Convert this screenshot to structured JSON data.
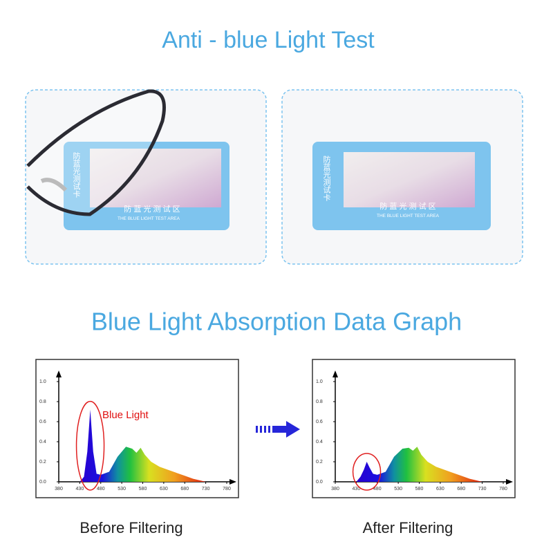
{
  "header": {
    "title": "Anti - blue Light Test"
  },
  "card": {
    "side_text": "防蓝光测试卡",
    "area_text": "防 蓝 光 测 试 区",
    "english_text": "THE BLUE LIGHT TEST AREA"
  },
  "section": {
    "title": "Blue Light Absorption Data Graph"
  },
  "chart_data": [
    {
      "type": "area",
      "annotation": "Blue Light",
      "caption": "Before Filtering",
      "x": [
        430,
        440,
        448,
        455,
        462,
        470,
        480,
        500,
        520,
        540,
        555,
        565,
        575,
        585,
        600,
        620,
        640,
        660,
        680,
        700,
        720,
        730
      ],
      "series": [
        {
          "values": [
            0,
            0.05,
            0.3,
            0.72,
            0.3,
            0.08,
            0.07,
            0.1,
            0.25,
            0.35,
            0.33,
            0.29,
            0.34,
            0.27,
            0.2,
            0.15,
            0.12,
            0.09,
            0.06,
            0.03,
            0.01,
            0
          ]
        }
      ],
      "xlim": [
        380,
        780
      ],
      "ylim": [
        0,
        1
      ],
      "xticks": [
        380,
        430,
        480,
        530,
        580,
        630,
        680,
        730,
        780
      ],
      "yticks": [
        {
          "value": 0,
          "label": "0.0"
        },
        0.2,
        0.4,
        0.6,
        0.8,
        {
          "value": 1,
          "label": "1.0"
        }
      ]
    },
    {
      "type": "area",
      "caption": "After Filtering",
      "x": [
        430,
        440,
        448,
        455,
        462,
        470,
        480,
        500,
        520,
        540,
        555,
        565,
        575,
        585,
        600,
        620,
        640,
        660,
        680,
        700,
        720,
        730
      ],
      "series": [
        {
          "values": [
            0,
            0.05,
            0.12,
            0.2,
            0.14,
            0.08,
            0.07,
            0.1,
            0.25,
            0.33,
            0.34,
            0.31,
            0.35,
            0.27,
            0.2,
            0.15,
            0.12,
            0.09,
            0.06,
            0.03,
            0.01,
            0
          ]
        }
      ],
      "xlim": [
        380,
        780
      ],
      "ylim": [
        0,
        1
      ],
      "xticks": [
        380,
        430,
        480,
        530,
        580,
        630,
        680,
        730,
        780
      ],
      "yticks": [
        {
          "value": 0,
          "label": "0.0"
        },
        0.2,
        0.4,
        0.6,
        0.8,
        {
          "value": 1,
          "label": "1.0"
        }
      ]
    }
  ]
}
